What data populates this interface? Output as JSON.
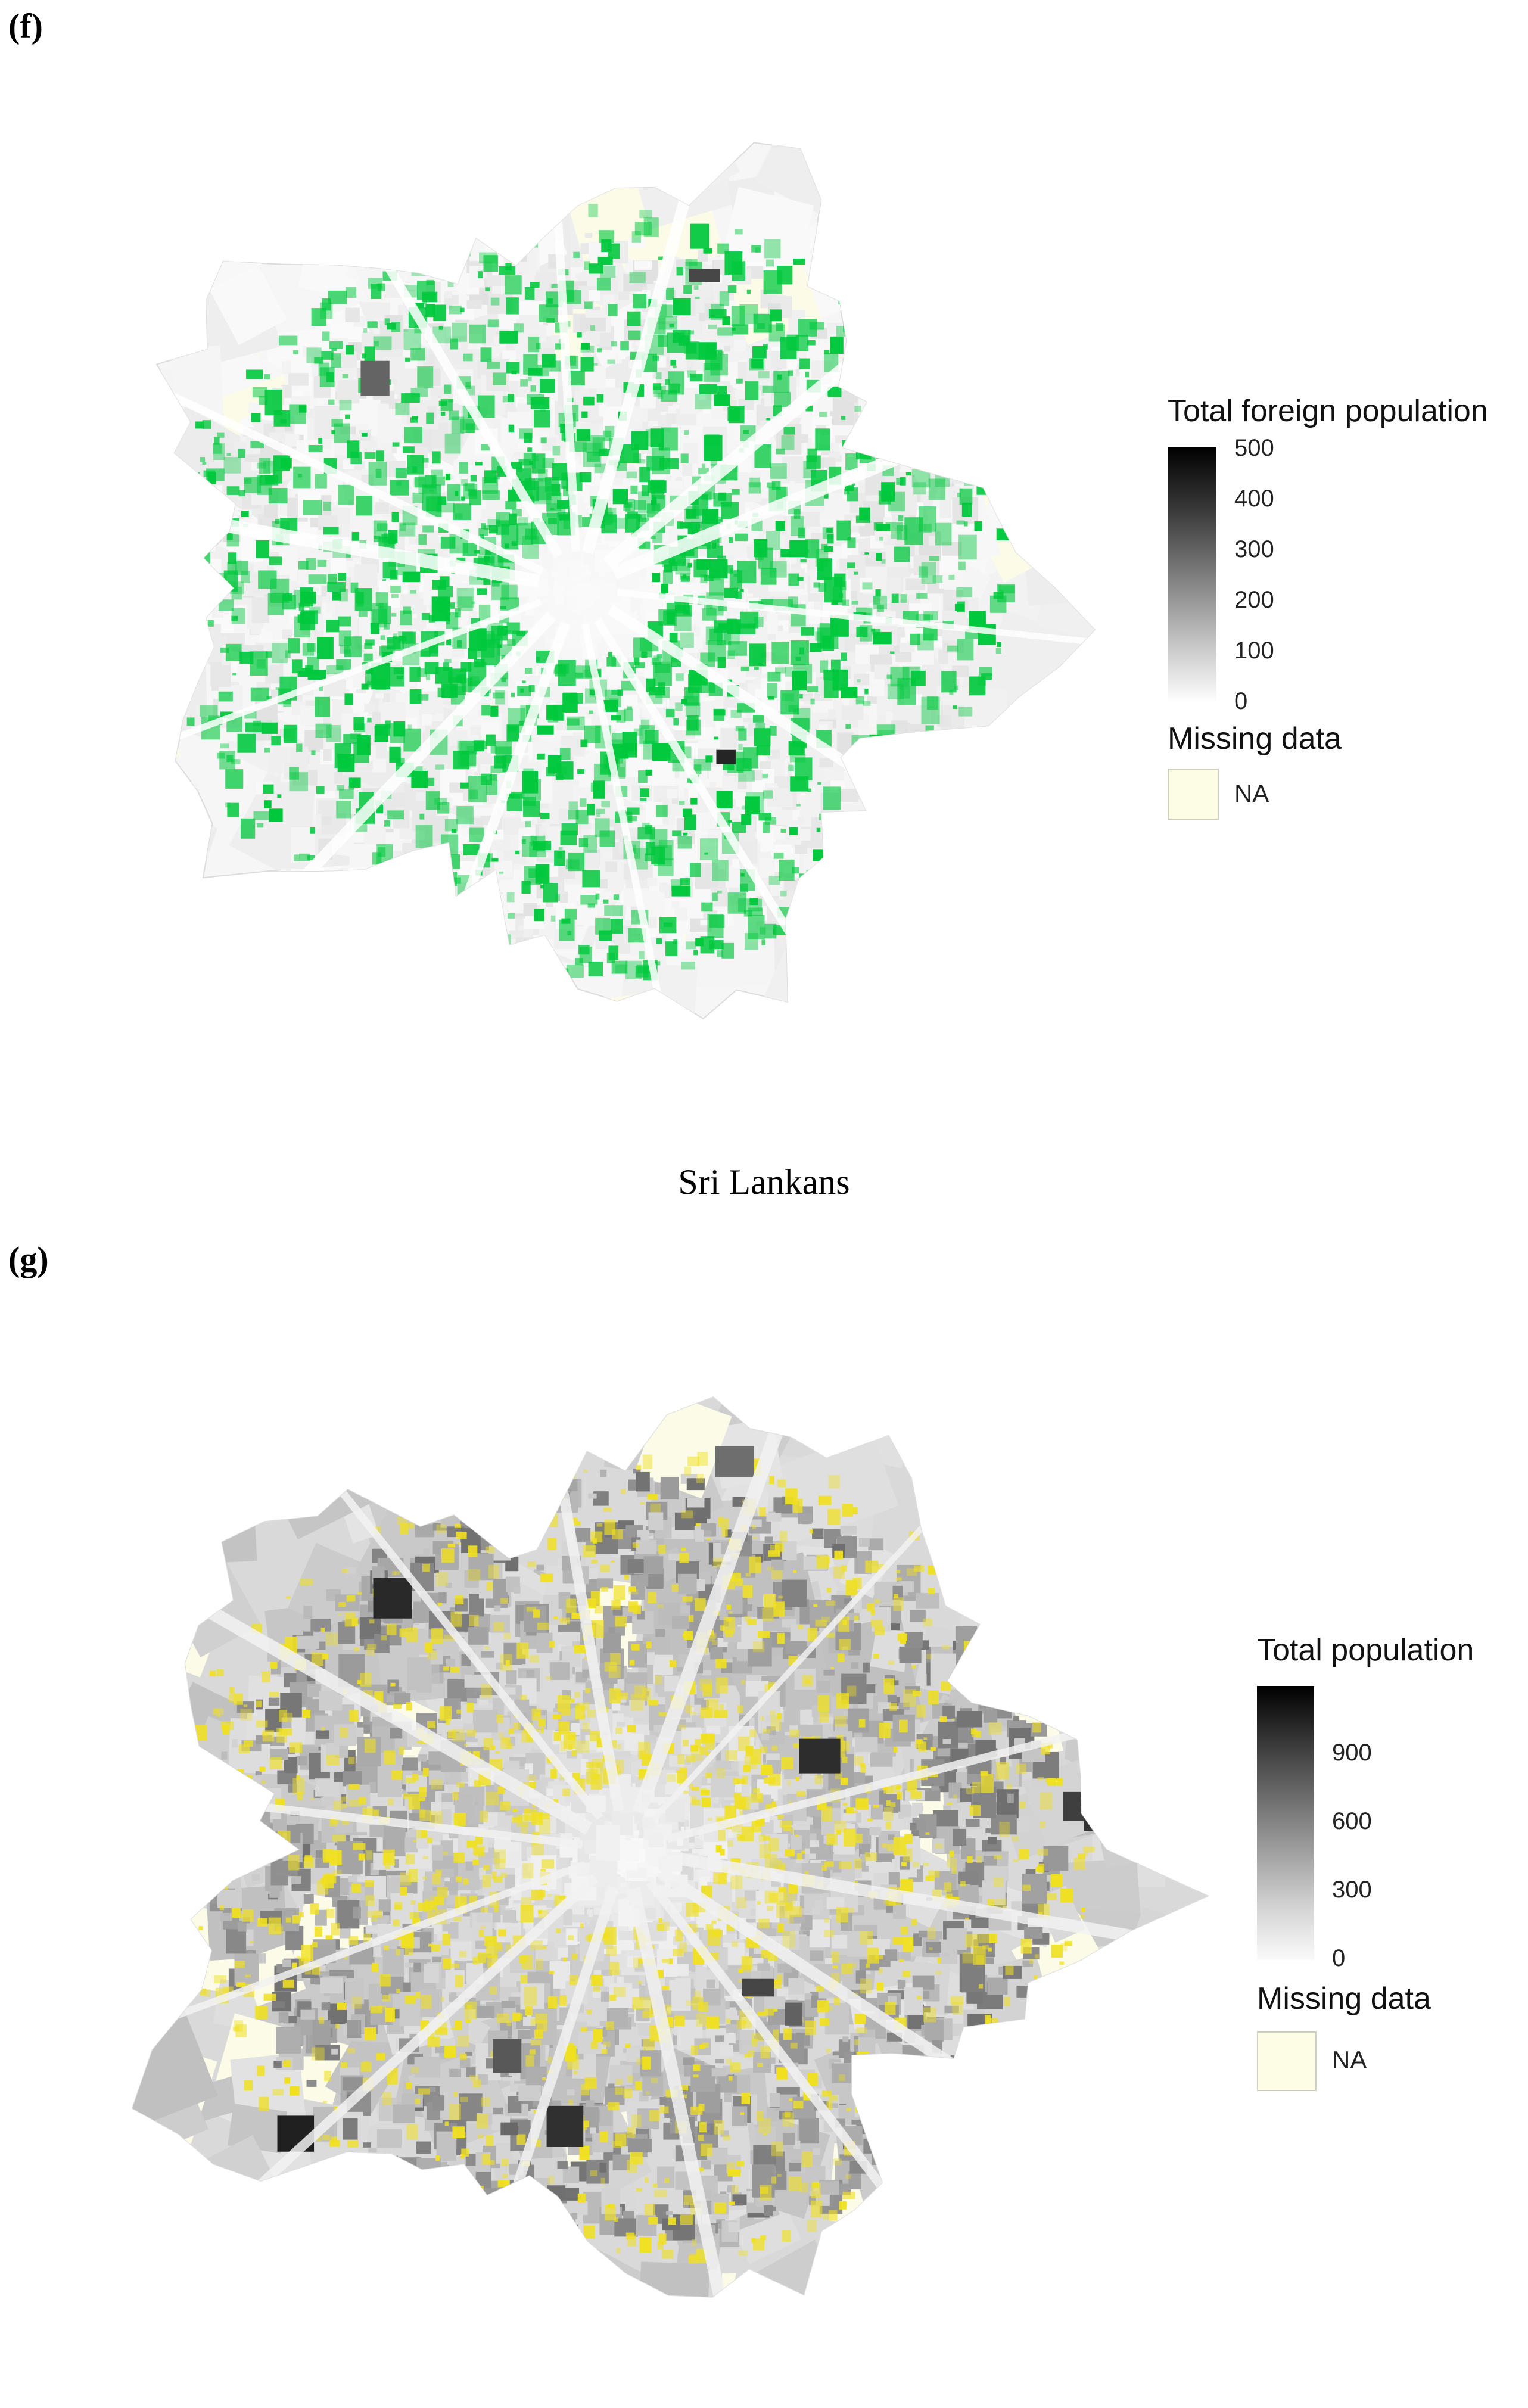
{
  "panels": [
    {
      "id": "f",
      "label": "(f)",
      "accent": "#00c83c",
      "legend": {
        "title": "Total foreign population",
        "ticks": [
          "500",
          "400",
          "300",
          "200",
          "100",
          "0"
        ],
        "missing_title": "Missing data",
        "missing_label": "NA",
        "missing_color": "#fdfde6",
        "gradient": [
          "#000000",
          "#ffffff"
        ]
      }
    },
    {
      "id": "g",
      "label": "(g)",
      "caption_above": "Sri Lankans",
      "accent": "#f0e020",
      "legend": {
        "title": "Total population",
        "ticks": [
          "900",
          "600",
          "300",
          "0"
        ],
        "missing_title": "Missing data",
        "missing_label": "NA",
        "missing_color": "#fdfde6",
        "gradient": [
          "#000000",
          "#ffffff"
        ]
      }
    }
  ]
}
